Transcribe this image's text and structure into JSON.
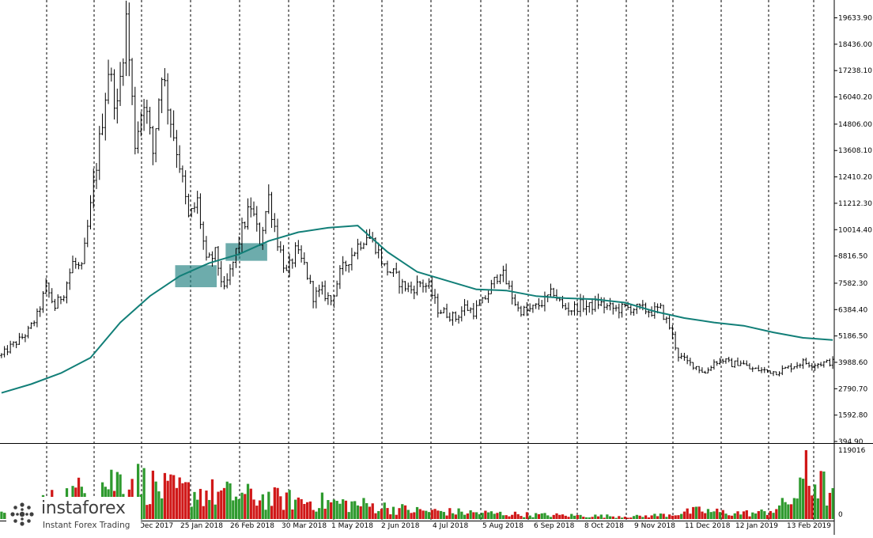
{
  "chart_data": [
    {
      "type": "candlestick",
      "title": "",
      "xlabel": "",
      "ylabel": "",
      "ylim": [
        394.9,
        20300
      ],
      "y_ticks": [
        "19633.90",
        "18436.00",
        "17238.10",
        "16040.20",
        "14806.00",
        "13608.10",
        "12410.20",
        "11212.30",
        "10014.40",
        "8816.50",
        "7582.30",
        "6384.40",
        "5186.50",
        "3988.60",
        "2790.70",
        "1592.80",
        "394.90"
      ],
      "x_tick_labels": [
        "Dec 2017",
        "25 Jan 2018",
        "26 Feb 2018",
        "30 Mar 2018",
        "1 May 2018",
        "2 Jun 2018",
        "4 Jul 2018",
        "5 Aug 2018",
        "6 Sep 2018",
        "8 Oct 2018",
        "9 Nov 2018",
        "11 Dec 2018",
        "12 Jan 2019",
        "13 Feb 2019"
      ],
      "grid": "vertical-dashed",
      "price_path": [
        [
          0,
          4300
        ],
        [
          3,
          4700
        ],
        [
          6,
          5000
        ],
        [
          9,
          5400
        ],
        [
          12,
          6100
        ],
        [
          15,
          7400
        ],
        [
          18,
          6500
        ],
        [
          21,
          7200
        ],
        [
          24,
          8500
        ],
        [
          27,
          8200
        ],
        [
          30,
          11000
        ],
        [
          33,
          14000
        ],
        [
          36,
          17300
        ],
        [
          39,
          15500
        ],
        [
          42,
          19600
        ],
        [
          45,
          14000
        ],
        [
          48,
          16000
        ],
        [
          51,
          13500
        ],
        [
          54,
          17300
        ],
        [
          57,
          15000
        ],
        [
          60,
          13000
        ],
        [
          63,
          10500
        ],
        [
          66,
          11300
        ],
        [
          69,
          8500
        ],
        [
          72,
          8900
        ],
        [
          75,
          7200
        ],
        [
          78,
          8500
        ],
        [
          81,
          10000
        ],
        [
          84,
          11100
        ],
        [
          87,
          9500
        ],
        [
          90,
          11500
        ],
        [
          93,
          9500
        ],
        [
          96,
          8000
        ],
        [
          99,
          9000
        ],
        [
          102,
          8400
        ],
        [
          105,
          7000
        ],
        [
          108,
          7200
        ],
        [
          111,
          6800
        ],
        [
          114,
          8000
        ],
        [
          117,
          8700
        ],
        [
          120,
          9300
        ],
        [
          123,
          9800
        ],
        [
          126,
          9300
        ],
        [
          129,
          8300
        ],
        [
          132,
          8000
        ],
        [
          135,
          7500
        ],
        [
          138,
          7300
        ],
        [
          141,
          7600
        ],
        [
          144,
          7400
        ],
        [
          147,
          6400
        ],
        [
          150,
          6200
        ],
        [
          153,
          6000
        ],
        [
          156,
          6500
        ],
        [
          159,
          6300
        ],
        [
          162,
          6700
        ],
        [
          165,
          7400
        ],
        [
          168,
          8200
        ],
        [
          171,
          7300
        ],
        [
          174,
          6400
        ],
        [
          177,
          6300
        ],
        [
          180,
          6500
        ],
        [
          183,
          6800
        ],
        [
          186,
          7200
        ],
        [
          189,
          6500
        ],
        [
          192,
          6400
        ],
        [
          195,
          6600
        ],
        [
          198,
          6500
        ],
        [
          201,
          6700
        ],
        [
          204,
          6500
        ],
        [
          207,
          6400
        ],
        [
          210,
          6450
        ],
        [
          213,
          6450
        ],
        [
          216,
          6400
        ],
        [
          219,
          6300
        ],
        [
          222,
          6400
        ],
        [
          225,
          5600
        ],
        [
          228,
          4300
        ],
        [
          231,
          4000
        ],
        [
          234,
          3800
        ],
        [
          237,
          3500
        ],
        [
          240,
          4000
        ],
        [
          243,
          4100
        ],
        [
          246,
          3900
        ],
        [
          249,
          4000
        ],
        [
          252,
          3700
        ],
        [
          255,
          3650
        ],
        [
          258,
          3600
        ],
        [
          261,
          3550
        ],
        [
          264,
          3700
        ],
        [
          267,
          3850
        ],
        [
          270,
          4000
        ],
        [
          273,
          3900
        ],
        [
          276,
          3950
        ],
        [
          280,
          4000
        ]
      ],
      "series": [
        {
          "name": "",
          "x": [
            0,
            10,
            20,
            30,
            40,
            50,
            60,
            70,
            80,
            90,
            100,
            110,
            120,
            130,
            140,
            150,
            160,
            170,
            180,
            190,
            200,
            210,
            220,
            230,
            240,
            250,
            260,
            270,
            280
          ],
          "values": [
            2600,
            3000,
            3500,
            4200,
            5800,
            7000,
            7900,
            8500,
            8900,
            9500,
            9900,
            10100,
            10200,
            9000,
            8100,
            7700,
            7300,
            7250,
            7000,
            6900,
            6850,
            6700,
            6300,
            6000,
            5800,
            5650,
            5350,
            5100,
            5000
          ]
        }
      ],
      "zones": [
        {
          "from": 59,
          "to": 73,
          "low": 7400,
          "high": 8400
        },
        {
          "from": 76,
          "to": 90,
          "low": 8600,
          "high": 9400
        }
      ]
    },
    {
      "type": "bar",
      "title": "",
      "ylim": [
        0,
        119016
      ],
      "y_ticks": [
        "119016",
        "0"
      ],
      "profile": [
        [
          0,
          18000
        ],
        [
          20,
          40000
        ],
        [
          32,
          65000
        ],
        [
          42,
          80000
        ],
        [
          55,
          55000
        ],
        [
          70,
          50000
        ],
        [
          85,
          42000
        ],
        [
          100,
          35000
        ],
        [
          120,
          28000
        ],
        [
          140,
          16000
        ],
        [
          160,
          12000
        ],
        [
          180,
          8000
        ],
        [
          200,
          6000
        ],
        [
          215,
          5000
        ],
        [
          225,
          9000
        ],
        [
          235,
          16000
        ],
        [
          245,
          12000
        ],
        [
          255,
          11000
        ],
        [
          262,
          22000
        ],
        [
          268,
          45000
        ],
        [
          273,
          75000
        ],
        [
          277,
          60000
        ],
        [
          280,
          40000
        ]
      ],
      "spike": {
        "x": 271,
        "value": 119016
      },
      "colors": {
        "up": "#2e9a2e",
        "down": "#d01818"
      }
    }
  ],
  "colors": {
    "candle": "#000000",
    "ma_line": "#127f78",
    "zone": "#1f7f7f",
    "grid": "#000000"
  },
  "brand": {
    "name": "instaforex",
    "tagline": "Instant Forex Trading"
  }
}
